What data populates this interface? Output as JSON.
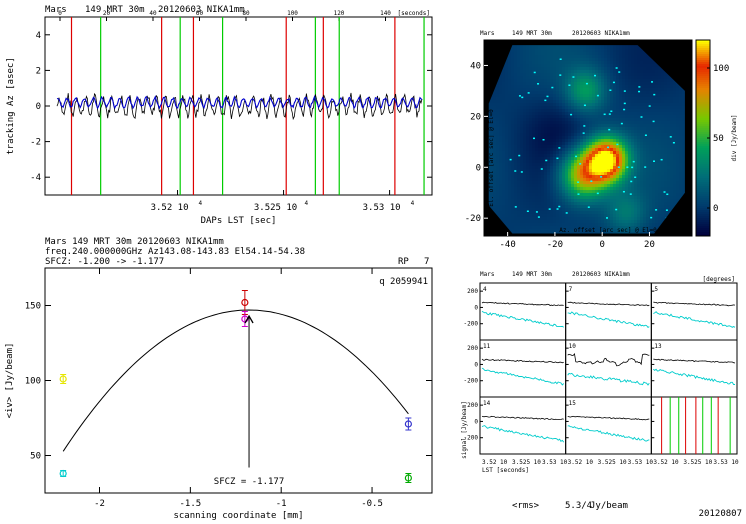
{
  "panel1": {
    "header_source": "Mars",
    "header_scan": "149 MRT 30m",
    "header_date": "20120603 NIKA1mm",
    "top_axis_label": "[seconds]",
    "top_ticks": [
      "0",
      "20",
      "40",
      "60",
      "80",
      "100",
      "120",
      "140",
      "160"
    ],
    "ylabel": "tracking Az [asec]",
    "xlabel": "DAPs LST [sec]",
    "yticks": [
      "4",
      "2",
      "0",
      "-2",
      "-4"
    ],
    "xticks": [
      "3.52 10",
      "3.525 10",
      "3.53 10"
    ],
    "xtick_exp": "4"
  },
  "panel2": {
    "line1": "Mars      149 MRT 30m   20120603 NIKA1mm",
    "line2": "freq.240.000000GHz  Az143.08-143.83 El54.14-54.38",
    "line3": "SFCZ: -1.200 -> -1.177",
    "rp_label": "RP",
    "rp_value": "7",
    "q_label": "q 2059941",
    "ylabel": "<iv> [Jy/beam]",
    "xlabel": "scanning coordinate [mm]",
    "arrow_label": "SFCZ = -1.177",
    "yticks": [
      "150",
      "100",
      "50"
    ],
    "xticks": [
      "-2",
      "-1.5",
      "-1",
      "-0.5"
    ]
  },
  "panel3": {
    "header_source": "Mars",
    "header_scan": "149 MRT 30m",
    "header_date": "20120603 NIKA1mm",
    "xlabel": "Az. offset [arc sec] @ El=0",
    "ylabel": "El. offset [arc sec] @ El=0",
    "cbar_label": "div [Jy/beam]",
    "xticks": [
      "-40",
      "-20",
      "0",
      "20"
    ],
    "yticks": [
      "40",
      "20",
      "0",
      "-20"
    ],
    "cbar_ticks": [
      "100",
      "50",
      "0"
    ]
  },
  "panel4": {
    "header_source": "Mars",
    "header_scan": "149 MRT 30m",
    "header_date": "20120603 NIKA1mm",
    "header_right": "[degrees]",
    "cell_labels": [
      "4",
      "7",
      "5",
      "11",
      "10",
      "13",
      "14",
      "15"
    ],
    "ylabel": "signal [Jy/beam]",
    "yticks": [
      "200",
      "0",
      "-200"
    ],
    "xlabel": "LST [seconds]",
    "xticks": [
      "3.52 10",
      "3.525 10",
      "3.53 10"
    ],
    "footer_rms": "<rms>",
    "footer_value": "5.3/4",
    "footer_unit": "Jy/beam",
    "footer_date": "20120807"
  },
  "chart_data": [
    {
      "type": "line",
      "title": "Mars 149 MRT 30m 20120603 NIKA1mm",
      "xlabel": "DAPs LST [sec]",
      "ylabel": "tracking Az [asec]",
      "xlim": [
        35160,
        35306
      ],
      "ylim": [
        -5,
        5
      ],
      "series": [
        {
          "values_desc": "oscillation",
          "mean": 0,
          "amplitude": 0.5,
          "color": "#000000"
        },
        {
          "values_desc": "oscillation",
          "mean": 0.2,
          "amplitude": 0.25,
          "color": "#0000cc"
        }
      ],
      "markers_red": [
        35170,
        35204,
        35216,
        35251,
        35265,
        35292
      ],
      "markers_green": [
        35181,
        35211,
        35227,
        35262,
        35271,
        35303
      ],
      "colors": {
        "black": "#000000",
        "blue": "#0000cc",
        "red": "#dd0000",
        "green": "#00cc00"
      }
    },
    {
      "type": "scatter",
      "title": "Mars 149 MRT 30m 20120603 NIKA1mm",
      "xlabel": "scanning coordinate [mm]",
      "ylabel": "<iv> [Jy/beam]",
      "xlim": [
        -2.3,
        -0.17
      ],
      "ylim": [
        25,
        175
      ],
      "points": [
        {
          "x": -2.2,
          "y": 101,
          "err": 3,
          "color": "#e6e600"
        },
        {
          "x": -2.2,
          "y": 38,
          "err": 2,
          "color": "#00cccc"
        },
        {
          "x": -1.2,
          "y": 152,
          "err": 8,
          "color": "#cc0000"
        },
        {
          "x": -1.2,
          "y": 141,
          "err": 5,
          "color": "#cc00cc"
        },
        {
          "x": -0.3,
          "y": 71,
          "err": 4,
          "color": "#3333cc"
        },
        {
          "x": -0.3,
          "y": 35,
          "err": 3,
          "color": "#00aa00"
        }
      ],
      "fit": {
        "vertex_x": -1.177,
        "vertex_y": 147,
        "curvature": -90,
        "x_range": [
          -2.2,
          -0.3
        ]
      },
      "sfcz": -1.177
    },
    {
      "type": "heatmap",
      "title": "Mars 149 MRT 30m 20120603 NIKA1mm",
      "xlabel": "Az. offset [arc sec] @ El=0",
      "ylabel": "El. offset [arc sec] @ El=0",
      "xlim": [
        -50,
        38
      ],
      "ylim": [
        -27,
        50
      ],
      "zlim": [
        -20,
        120
      ],
      "peak": {
        "x": 2,
        "y": 3,
        "z": 120
      },
      "secondary": [
        {
          "x": -8,
          "y": -3,
          "z": 80
        },
        {
          "x": -7,
          "y": 30,
          "z": 40
        },
        {
          "x": 10,
          "y": -18,
          "z": 25
        }
      ]
    },
    {
      "type": "line",
      "title": "Mars 149 MRT 30m 20120603 NIKA1mm",
      "xlabel": "LST [seconds]",
      "ylabel": "signal [Jy/beam]",
      "ylim": [
        -400,
        300
      ],
      "panels": 9
    }
  ]
}
